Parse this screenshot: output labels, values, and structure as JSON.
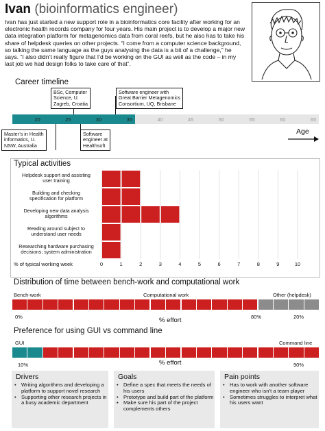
{
  "header": {
    "name": "Ivan",
    "role": "(bioinformatics engineer)",
    "bio": "Ivan has just started a new support role in a bioinformatics core facility after working for an electronic health records company for four years. His main project is to develop a major new data integration platform for metagenomics data from coral reefs, but he also has to take his share of helpdesk queries on other projects. “I come from a computer science background, so talking the same language as the guys analysing the data is a bit of a challenge,” he says. “I also didn’t really figure that I’d be working on the GUI as well as the code – in my last job we had design folks to take care of that”."
  },
  "career": {
    "title": "Career timeline",
    "ages": [
      "20",
      "25",
      "30",
      "35",
      "40",
      "45",
      "50",
      "55",
      "60",
      "65"
    ],
    "current_age_value": 35,
    "accent": "#1a8a8f",
    "axis_label": "Age",
    "events_above": [
      {
        "text": "BSc, Computer\nScience, U.\nZagreb, Croatia"
      },
      {
        "text": "Software engineer with\nGreat Barrier Metagenomics\nConsortium, UQ, Brisbane"
      }
    ],
    "events_below": [
      {
        "text": "Master’s in Health\ninformatics, U.\nNSW, Australia"
      },
      {
        "text": "Software\nengineer at\nHealthsoft"
      }
    ]
  },
  "activities": {
    "title": "Typical activities",
    "items": [
      {
        "label": "Helpdesk support and assisting\nuser training"
      },
      {
        "label": "Building and checking\nspecification for platform"
      },
      {
        "label": "Developing new data analysis\nalgorithms"
      },
      {
        "label": "Reading around subject to\nunderstand user needs"
      },
      {
        "label": "Researching hardware purchasing\ndecisions; system administration"
      }
    ],
    "axis_title": "% of typical working week",
    "ticks": [
      "0",
      "1",
      "2",
      "3",
      "4",
      "5",
      "6",
      "7",
      "8",
      "9",
      "10"
    ]
  },
  "chart_data": {
    "type": "bar",
    "orientation": "horizontal",
    "categories": [
      "Helpdesk support and assisting user training",
      "Building and checking specification for platform",
      "Developing new data analysis algorithms",
      "Reading around subject to understand user needs",
      "Researching hardware purchasing decisions; system administration"
    ],
    "values": [
      2,
      2,
      4,
      1,
      1
    ],
    "xlabel": "% of typical working week",
    "xlim": [
      0,
      10
    ],
    "color": "#cc1f1f"
  },
  "distribution": {
    "title": "Distribution of time between bench-work and computational work",
    "bench_label": "Bench-work",
    "comp_label": "Computational work",
    "other_label": "Other (helpdesk)",
    "bench_pct_label": "0%",
    "comp_pct_label": "80%",
    "other_pct_label": "20%",
    "axis_label": "% effort",
    "comp_fraction": 0.8,
    "other_fraction": 0.2,
    "comp_color": "#cc1f1f",
    "other_color": "#8c8c8c"
  },
  "preference": {
    "title": "Preference for using GUI vs command line",
    "gui_label": "GUI",
    "cli_label": "Command line",
    "gui_pct_label": "10%",
    "cli_pct_label": "90%",
    "axis_label": "% effort",
    "gui_fraction": 0.1,
    "cli_fraction": 0.9,
    "gui_color": "#1a8a8f",
    "cli_color": "#cc1f1f"
  },
  "drivers": {
    "title": "Drivers",
    "items": [
      "Writing algorithms and developing a platform to support novel research",
      "Supporting other research projects in a busy academic department"
    ]
  },
  "goals": {
    "title": "Goals",
    "items": [
      "Define a spec that meets the needs of his users",
      "Prototype and build part of the platform",
      "Make sure his part of the project complements others"
    ]
  },
  "pain_points": {
    "title": "Pain points",
    "items": [
      "Has to work with another software engineer who isn’t a team player",
      "Sometimes struggles to interpret what his users want"
    ]
  }
}
